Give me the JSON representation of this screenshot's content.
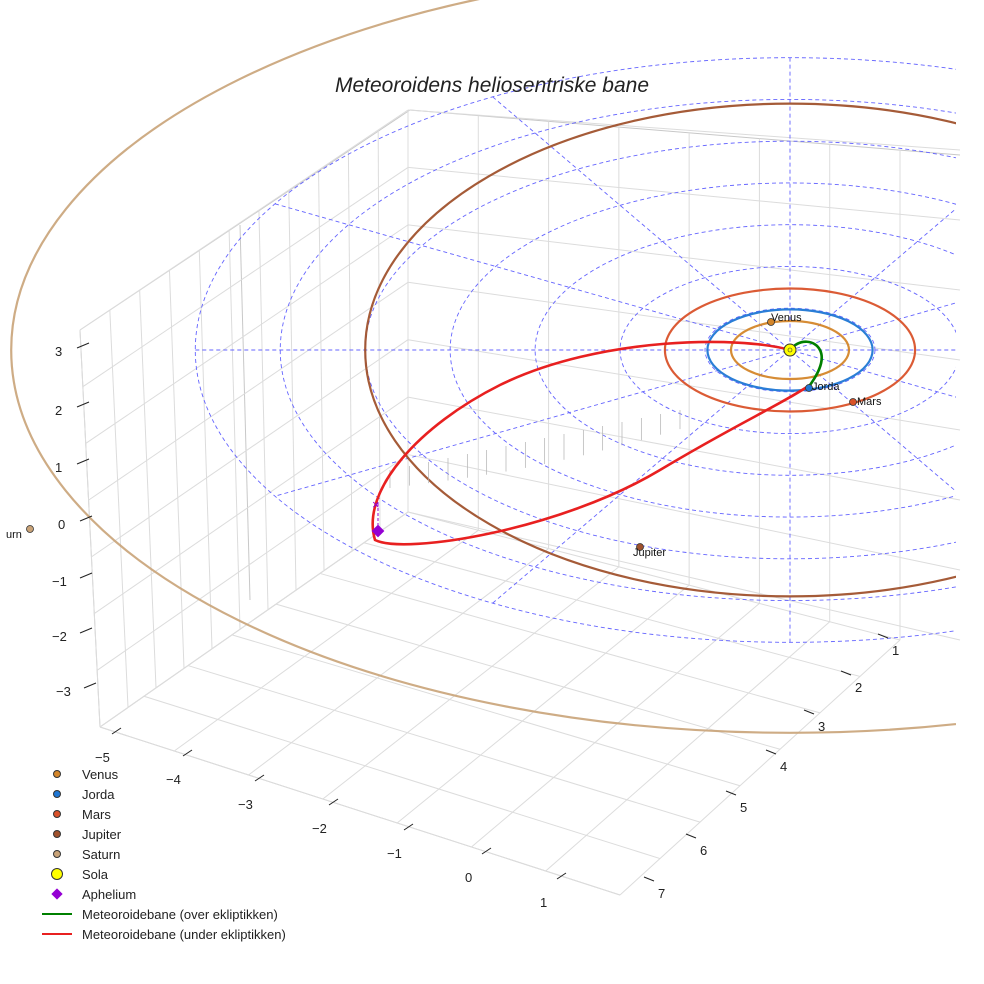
{
  "title": "Meteoroidens heliosentriske bane",
  "colors": {
    "venus": "#d4862a",
    "jorda": "#1f77d4",
    "mars": "#d9522a",
    "jupiter": "#a0522d",
    "saturn": "#c9a378",
    "sola": "#ffff00",
    "aphelium": "#9400d3",
    "above": "#008000",
    "below": "#e82020",
    "grid": "#6464ff"
  },
  "chart_data": {
    "type": "line",
    "title": "Meteoroidens heliosentriske bane",
    "axes": {
      "x_ticks": [
        -5,
        -4,
        -3,
        -2,
        -1,
        0,
        1
      ],
      "y_ticks": [
        1,
        2,
        3,
        4,
        5,
        6,
        7
      ],
      "z_ticks": [
        3,
        2,
        1,
        0,
        -1,
        -2,
        -3
      ],
      "xlim": [
        -5.5,
        1.5
      ],
      "ylim": [
        0.5,
        7.5
      ],
      "zlim": [
        -3.5,
        3.5
      ]
    },
    "planets": [
      {
        "name": "Venus",
        "label": "Venus",
        "a_au": 0.72
      },
      {
        "name": "Jorda",
        "label": "Jorda",
        "a_au": 1.0
      },
      {
        "name": "Mars",
        "label": "Mars",
        "a_au": 1.52
      },
      {
        "name": "Jupiter",
        "label": "Jupiter",
        "a_au": 5.2
      },
      {
        "name": "Saturn",
        "label": "urn",
        "a_au": 9.5
      }
    ],
    "reference_circles_au": [
      1,
      2,
      3,
      4,
      5,
      6,
      7
    ],
    "series": [
      {
        "name": "Meteoroidebane (over ekliptikken)"
      },
      {
        "name": "Meteoroidebane (under ekliptikken)"
      }
    ]
  },
  "legend": [
    {
      "label": "Venus",
      "kind": "dot",
      "color": "#d4862a"
    },
    {
      "label": "Jorda",
      "kind": "dot",
      "color": "#1f77d4"
    },
    {
      "label": "Mars",
      "kind": "dot",
      "color": "#d9522a"
    },
    {
      "label": "Jupiter",
      "kind": "dot",
      "color": "#a0522d"
    },
    {
      "label": "Saturn",
      "kind": "dot",
      "color": "#c9a378"
    },
    {
      "label": "Sola",
      "kind": "sun",
      "color": "#ffff00"
    },
    {
      "label": "Aphelium",
      "kind": "diamond",
      "color": "#9400d3"
    },
    {
      "label": "Meteoroidebane (over ekliptikken)",
      "kind": "line",
      "color": "#008000"
    },
    {
      "label": "Meteoroidebane (under ekliptikken)",
      "kind": "line",
      "color": "#e82020"
    }
  ]
}
